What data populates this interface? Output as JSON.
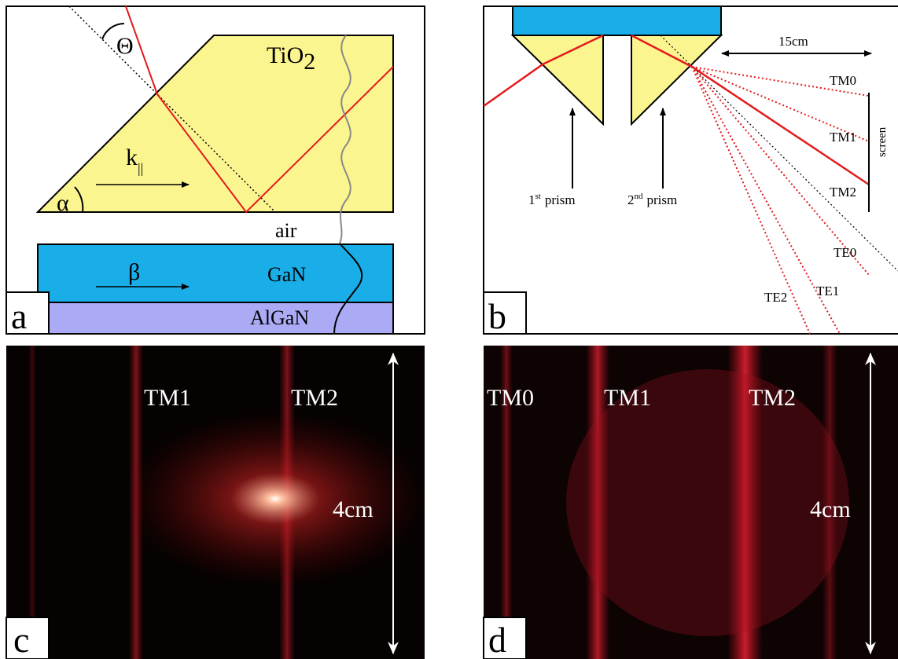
{
  "panel_a": {
    "label": "a",
    "theta": "Θ",
    "tio2": [
      "TiO",
      "2"
    ],
    "k": [
      "k",
      "||"
    ],
    "alpha": "α",
    "air": "air",
    "beta": "β",
    "gan": "GaN",
    "algan": "AlGaN"
  },
  "panel_b": {
    "label": "b",
    "distance": "15cm",
    "modes": [
      "TM0",
      "TM1",
      "TM2",
      "TE0",
      "TE1",
      "TE2"
    ],
    "screen": "screen",
    "prism1": [
      "1",
      "st",
      "prism"
    ],
    "prism2": [
      "2",
      "nd",
      "prism"
    ]
  },
  "panel_c": {
    "label": "c",
    "modes": [
      "TM1",
      "TM2"
    ],
    "height": "4cm"
  },
  "panel_d": {
    "label": "d",
    "modes": [
      "TM0",
      "TM1",
      "TM2"
    ],
    "height": "4cm"
  }
}
